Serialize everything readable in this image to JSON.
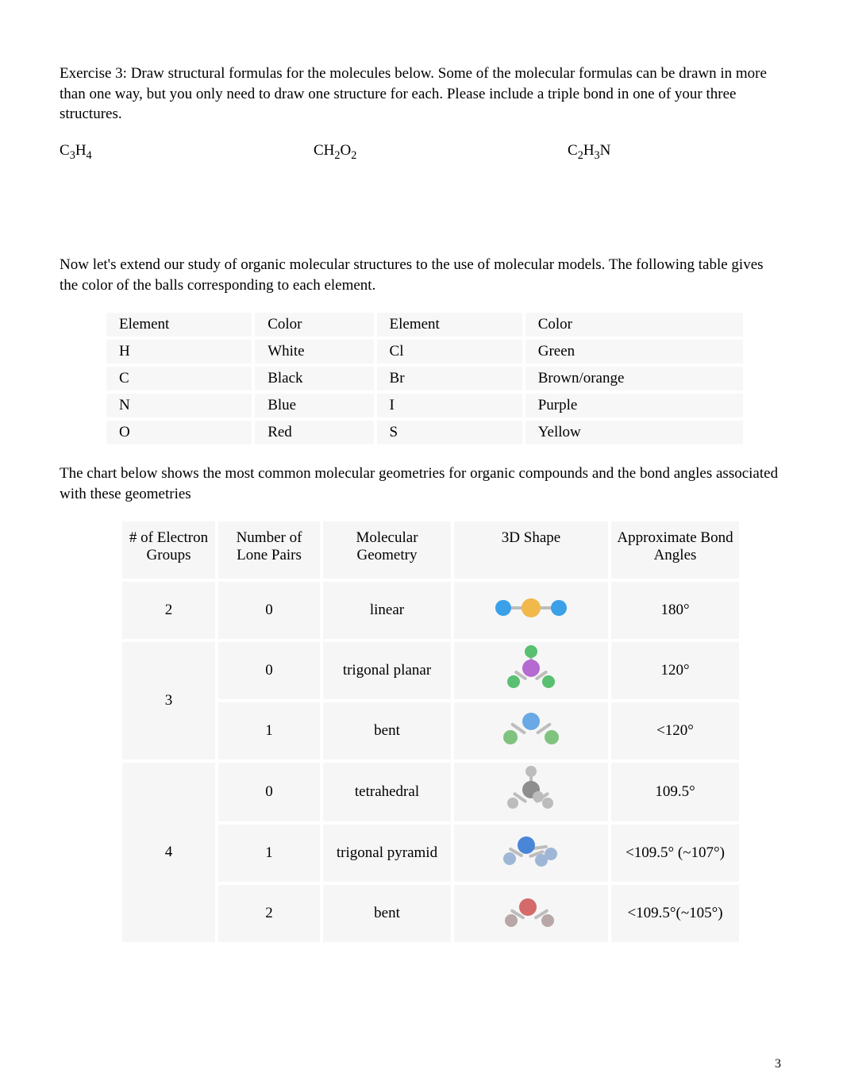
{
  "exercise": {
    "label": "Exercise 3:",
    "text": "Draw structural formulas for the molecules below.   Some of the molecular formulas can be drawn in more than one way, but you only need to draw one structure for each.     Please include a triple bond in one of your three structures."
  },
  "formulas": {
    "f1_html": "C<sub>3</sub>H<sub>4</sub>",
    "f2_html": "CH<sub>2</sub>O<sub>2</sub>",
    "f3_html": "C<sub>2</sub>H<sub>3</sub>N"
  },
  "intro2": "Now let's extend our study of organic molecular structures to the use of molecular models. The following table gives the color of the balls corresponding to each element.",
  "colorTable": {
    "headers": [
      "Element",
      "Color",
      "Element",
      "Color"
    ],
    "rows": [
      [
        "H",
        "White",
        "Cl",
        "Green"
      ],
      [
        "C",
        "Black",
        "Br",
        "Brown/orange"
      ],
      [
        "N",
        "Blue",
        "I",
        "Purple"
      ],
      [
        "O",
        "Red",
        "S",
        "Yellow"
      ]
    ],
    "bg": "#f7f7f7",
    "border": "#ffffff"
  },
  "intro3": "The chart below shows the most common molecular geometries for organic compounds and the bond angles associated with these geometries",
  "geomTable": {
    "headers": [
      "# of Electron Groups",
      "Number of Lone Pairs",
      "Molecular Geometry",
      "3D Shape",
      "Approximate Bond Angles"
    ],
    "groups": [
      {
        "eg": "2",
        "rows": [
          {
            "lp": "0",
            "mg": "linear",
            "shape": "linear",
            "ba": "180°"
          }
        ]
      },
      {
        "eg": "3",
        "rows": [
          {
            "lp": "0",
            "mg": "trigonal planar",
            "shape": "trigonal-planar",
            "ba": "120°"
          },
          {
            "lp": "1",
            "mg": "bent",
            "shape": "bent3",
            "ba": "<120°"
          }
        ]
      },
      {
        "eg": "4",
        "rows": [
          {
            "lp": "0",
            "mg": "tetrahedral",
            "shape": "tetrahedral",
            "ba": "109.5°"
          },
          {
            "lp": "1",
            "mg": "trigonal pyramid",
            "shape": "trigonal-pyramid",
            "ba": "<109.5° (~107°)"
          },
          {
            "lp": "2",
            "mg": "bent",
            "shape": "bent4",
            "ba": "<109.5°(~105°)"
          }
        ]
      }
    ],
    "bg": "#f6f6f6",
    "border": "#ffffff"
  },
  "pageNumber": "3"
}
